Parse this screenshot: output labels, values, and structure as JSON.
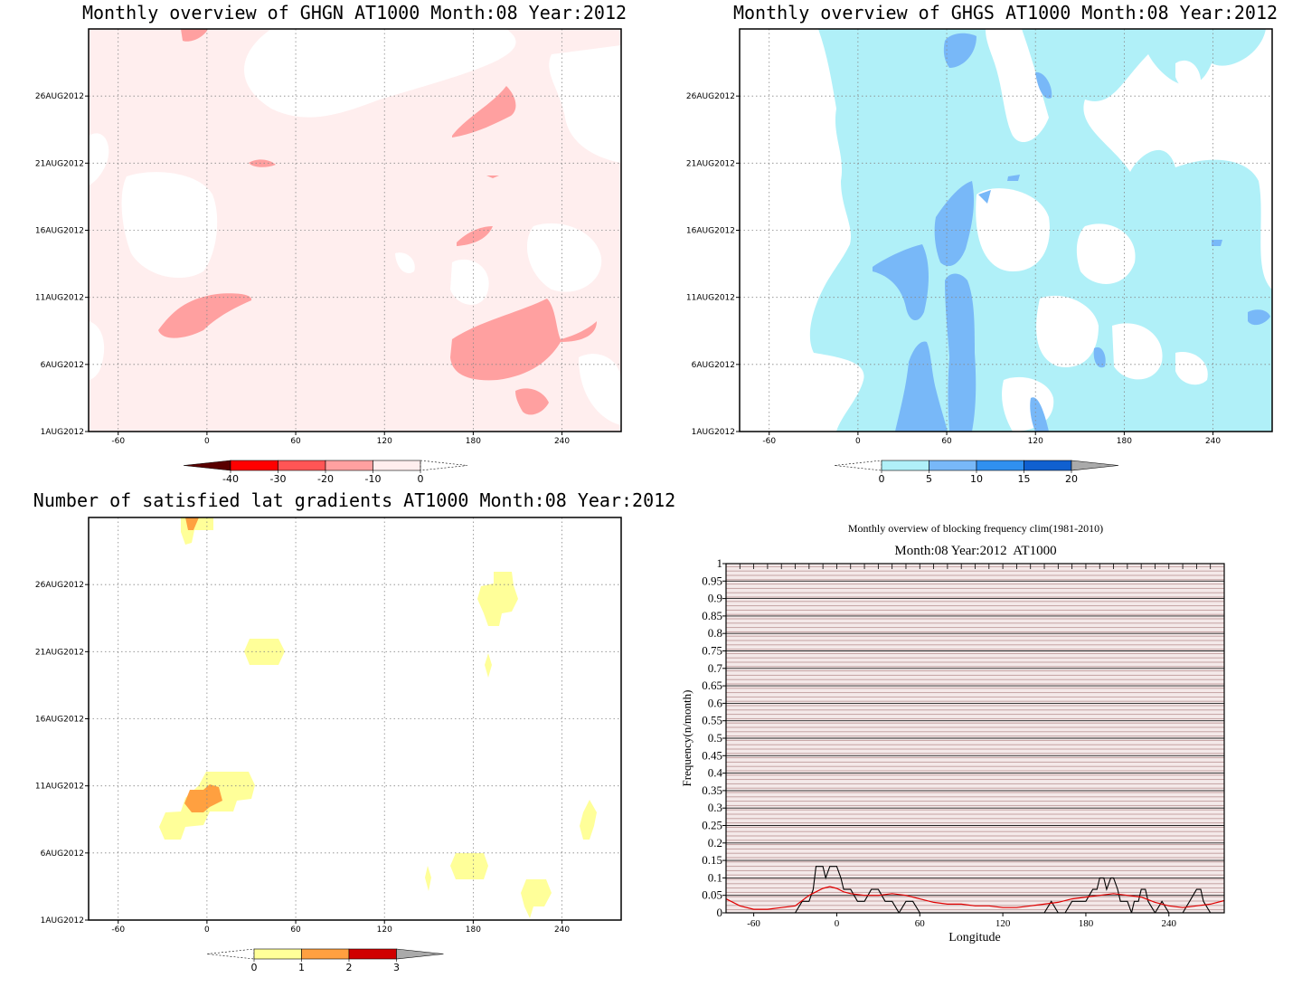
{
  "chart_data": [
    {
      "id": "ghgn",
      "type": "heatmap",
      "title": "Monthly overview of GHGN AT1000 Month:08 Year:2012",
      "x_ticks": [
        "-60",
        "0",
        "60",
        "120",
        "180",
        "240"
      ],
      "x_tick_values": [
        -60,
        0,
        60,
        120,
        180,
        240
      ],
      "y_ticks": [
        "1AUG2012",
        "6AUG2012",
        "11AUG2012",
        "16AUG2012",
        "21AUG2012",
        "26AUG2012"
      ],
      "y_tick_values": [
        1,
        6,
        11,
        16,
        21,
        26
      ],
      "xlim": [
        -80,
        280
      ],
      "ylim": [
        1,
        31
      ],
      "colorbar": {
        "labels": [
          "-40",
          "-30",
          "-20",
          "-10",
          "0"
        ],
        "colors": [
          "#5a0000",
          "#ff0000",
          "#ff5555",
          "#ffa0a0",
          "#ffeeee"
        ]
      },
      "regions": [
        {
          "level": "0 to -10",
          "color": "#ffeeee",
          "description": "broad background coverage"
        },
        {
          "level": "-10 to -20",
          "color": "#ffa0a0",
          "x": [
            160,
            270
          ],
          "y": [
            5,
            10
          ]
        },
        {
          "level": "-10 to -20",
          "color": "#ffa0a0",
          "x": [
            -35,
            30
          ],
          "y": [
            8,
            11
          ]
        },
        {
          "level": "-10 to -20",
          "color": "#ffa0a0",
          "x": [
            165,
            210
          ],
          "y": [
            23,
            26
          ]
        },
        {
          "level": "-10 to -20",
          "color": "#ffa0a0",
          "x": [
            170,
            190
          ],
          "y": [
            15,
            16.5
          ]
        },
        {
          "level": "-10 to -20",
          "color": "#ffa0a0",
          "x": [
            205,
            230
          ],
          "y": [
            2,
            4
          ]
        }
      ]
    },
    {
      "id": "ghgs",
      "type": "heatmap",
      "title": "Monthly overview of GHGS AT1000 Month:08 Year:2012",
      "x_ticks": [
        "-60",
        "0",
        "60",
        "120",
        "180",
        "240"
      ],
      "x_tick_values": [
        -60,
        0,
        60,
        120,
        180,
        240
      ],
      "y_ticks": [
        "1AUG2012",
        "6AUG2012",
        "11AUG2012",
        "16AUG2012",
        "21AUG2012",
        "26AUG2012"
      ],
      "y_tick_values": [
        1,
        6,
        11,
        16,
        21,
        26
      ],
      "xlim": [
        -80,
        280
      ],
      "ylim": [
        1,
        31
      ],
      "colorbar": {
        "labels": [
          "0",
          "5",
          "10",
          "15",
          "20"
        ],
        "colors": [
          "#b0f0f8",
          "#78b8f8",
          "#3090f0",
          "#1060d0",
          "#aaaaaa"
        ]
      },
      "regions": [
        {
          "level": "0 to 5",
          "color": "#b0f0f8",
          "description": "broad background coverage"
        },
        {
          "level": "5 to 10",
          "color": "#78b8f8",
          "x": [
            30,
            80
          ],
          "y": [
            1,
            17
          ]
        },
        {
          "level": "5 to 10",
          "color": "#78b8f8",
          "x": [
            45,
            75
          ],
          "y": [
            14,
            20
          ]
        },
        {
          "level": "5 to 10",
          "color": "#78b8f8",
          "x": [
            55,
            75
          ],
          "y": [
            28,
            31
          ]
        }
      ]
    },
    {
      "id": "gradients",
      "type": "heatmap",
      "title": "Number of satisfied lat gradients AT1000 Month:08 Year:2012",
      "x_ticks": [
        "-60",
        "0",
        "60",
        "120",
        "180",
        "240"
      ],
      "x_tick_values": [
        -60,
        0,
        60,
        120,
        180,
        240
      ],
      "y_ticks": [
        "1AUG2012",
        "6AUG2012",
        "11AUG2012",
        "16AUG2012",
        "21AUG2012",
        "26AUG2012"
      ],
      "y_tick_values": [
        1,
        6,
        11,
        16,
        21,
        26
      ],
      "xlim": [
        -80,
        280
      ],
      "ylim": [
        1,
        31
      ],
      "colorbar": {
        "labels": [
          "0",
          "1",
          "2",
          "3"
        ],
        "colors": [
          "#ffff99",
          "#ffa040",
          "#d00000",
          "#aaaaaa"
        ]
      },
      "regions": [
        {
          "level": "0 to 1",
          "color": "#ffff99",
          "x": [
            -32,
            32
          ],
          "y": [
            7,
            12
          ]
        },
        {
          "level": "1 to 2",
          "color": "#ffa040",
          "x": [
            -15,
            10
          ],
          "y": [
            9,
            10.5
          ]
        },
        {
          "level": "0 to 1",
          "color": "#ffff99",
          "x": [
            25,
            52
          ],
          "y": [
            20,
            22
          ]
        },
        {
          "level": "0 to 1",
          "color": "#ffff99",
          "x": [
            180,
            210
          ],
          "y": [
            24,
            27.5
          ]
        },
        {
          "level": "0 to 1",
          "color": "#ffff99",
          "x": [
            165,
            190
          ],
          "y": [
            4,
            6
          ]
        },
        {
          "level": "0 to 1",
          "color": "#ffff99",
          "x": [
            210,
            230
          ],
          "y": [
            2,
            4
          ]
        },
        {
          "level": "0 to 1",
          "color": "#ffff99",
          "x": [
            -20,
            5
          ],
          "y": [
            29.5,
            31
          ]
        }
      ]
    },
    {
      "id": "blocking",
      "type": "line",
      "title": "Monthly overview of blocking frequency clim(1981-2010)",
      "subtitle": "Month:08 Year:2012  AT1000",
      "xlabel": "Longitude",
      "ylabel": "Frequency(n/month)",
      "xlim": [
        -80,
        280
      ],
      "ylim": [
        0,
        1
      ],
      "x_ticks": [
        "-60",
        "0",
        "60",
        "120",
        "180",
        "240"
      ],
      "x_tick_values": [
        -60,
        0,
        60,
        120,
        180,
        240
      ],
      "y_ticks": [
        "0",
        "0.05",
        "0.1",
        "0.15",
        "0.2",
        "0.25",
        "0.3",
        "0.35",
        "0.4",
        "0.45",
        "0.5",
        "0.55",
        "0.6",
        "0.65",
        "0.7",
        "0.75",
        "0.8",
        "0.85",
        "0.9",
        "0.95",
        "1"
      ],
      "y_tick_values": [
        0,
        0.05,
        0.1,
        0.15,
        0.2,
        0.25,
        0.3,
        0.35,
        0.4,
        0.45,
        0.5,
        0.55,
        0.6,
        0.65,
        0.7,
        0.75,
        0.8,
        0.85,
        0.9,
        0.95,
        1
      ],
      "series": [
        {
          "color": "#000000",
          "x": [
            -80,
            -30,
            -25,
            -20,
            -17,
            -15,
            -10,
            -8,
            -5,
            0,
            3,
            5,
            10,
            15,
            20,
            25,
            30,
            35,
            40,
            45,
            50,
            55,
            60,
            140,
            150,
            155,
            160,
            165,
            170,
            175,
            180,
            185,
            188,
            190,
            193,
            195,
            198,
            200,
            203,
            205,
            210,
            213,
            215,
            218,
            220,
            223,
            225,
            230,
            235,
            240,
            245,
            250,
            255,
            260,
            263,
            265,
            270,
            275,
            280
          ],
          "y": [
            0,
            0,
            0.033,
            0.033,
            0.067,
            0.133,
            0.133,
            0.1,
            0.133,
            0.133,
            0.1,
            0.067,
            0.067,
            0.033,
            0.033,
            0.067,
            0.067,
            0.033,
            0.033,
            0,
            0.033,
            0.033,
            0,
            0,
            0,
            0.033,
            0,
            0,
            0.033,
            0.033,
            0.033,
            0.067,
            0.067,
            0.1,
            0.1,
            0.067,
            0.1,
            0.1,
            0.067,
            0.033,
            0.033,
            0,
            0.033,
            0.033,
            0.067,
            0.067,
            0.033,
            0,
            0.033,
            0,
            0,
            0,
            0.033,
            0.067,
            0.067,
            0.033,
            0,
            0,
            0
          ]
        },
        {
          "color": "#e00000",
          "x": [
            -80,
            -75,
            -70,
            -60,
            -50,
            -40,
            -30,
            -25,
            -20,
            -15,
            -10,
            -5,
            0,
            5,
            10,
            20,
            30,
            40,
            50,
            60,
            70,
            80,
            90,
            100,
            110,
            120,
            130,
            140,
            150,
            160,
            170,
            180,
            190,
            200,
            210,
            220,
            230,
            240,
            250,
            260,
            270,
            280
          ],
          "y": [
            0.04,
            0.03,
            0.02,
            0.01,
            0.01,
            0.015,
            0.02,
            0.035,
            0.05,
            0.06,
            0.07,
            0.075,
            0.07,
            0.06,
            0.055,
            0.05,
            0.05,
            0.055,
            0.05,
            0.04,
            0.03,
            0.025,
            0.025,
            0.02,
            0.02,
            0.015,
            0.015,
            0.02,
            0.025,
            0.03,
            0.04,
            0.045,
            0.05,
            0.055,
            0.05,
            0.045,
            0.03,
            0.02,
            0.015,
            0.02,
            0.025,
            0.035
          ]
        }
      ]
    }
  ]
}
